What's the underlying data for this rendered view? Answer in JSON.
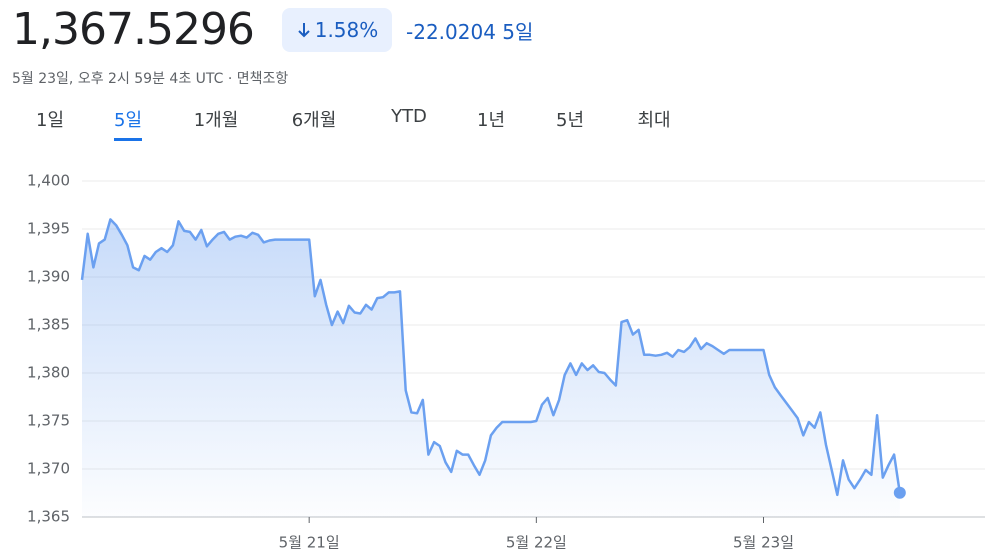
{
  "header": {
    "price": "1,367.5296",
    "change_percent": "1.58%",
    "change": "-22.0204",
    "period": "5일",
    "subtitle": "5월 23일, 오후 2시 59분 4초 UTC · 면책조항"
  },
  "tabs": {
    "items": [
      "1일",
      "5일",
      "1개월",
      "6개월",
      "YTD",
      "1년",
      "5년",
      "최대"
    ],
    "selected": 1
  },
  "chart_data": {
    "type": "line",
    "color": "#6ba0f0",
    "grid": true,
    "values": [
      1389.7,
      1394.5,
      1391.0,
      1393.5,
      1393.9,
      1396.0,
      1395.4,
      1394.4,
      1393.3,
      1391.0,
      1390.7,
      1392.2,
      1391.8,
      1392.6,
      1393.0,
      1392.6,
      1393.3,
      1395.8,
      1394.8,
      1394.7,
      1393.9,
      1394.9,
      1393.2,
      1393.9,
      1394.5,
      1394.7,
      1393.9,
      1394.2,
      1394.3,
      1394.1,
      1394.6,
      1394.4,
      1393.6,
      1393.8,
      1393.9,
      1393.9,
      1393.9,
      1393.9,
      1393.9,
      1393.9,
      1393.9,
      1388.0,
      1389.7,
      1387.1,
      1385.0,
      1386.4,
      1385.2,
      1387.0,
      1386.3,
      1386.2,
      1387.1,
      1386.6,
      1387.8,
      1387.9,
      1388.4,
      1388.4,
      1388.5,
      1378.2,
      1375.9,
      1375.8,
      1377.2,
      1371.5,
      1372.8,
      1372.4,
      1370.7,
      1369.7,
      1371.9,
      1371.5,
      1371.5,
      1370.4,
      1369.4,
      1370.9,
      1373.5,
      1374.3,
      1374.9,
      1374.9,
      1374.9,
      1374.9,
      1374.9,
      1374.9,
      1375.0,
      1376.7,
      1377.4,
      1375.6,
      1377.2,
      1379.8,
      1381.0,
      1379.8,
      1381.0,
      1380.3,
      1380.8,
      1380.1,
      1380.0,
      1379.3,
      1378.7,
      1385.3,
      1385.5,
      1384.0,
      1384.5,
      1381.9,
      1381.9,
      1381.8,
      1381.9,
      1382.1,
      1381.7,
      1382.4,
      1382.2,
      1382.7,
      1383.6,
      1382.5,
      1383.1,
      1382.8,
      1382.4,
      1382.0,
      1382.4,
      1382.4,
      1382.4,
      1382.4,
      1382.4,
      1382.4,
      1382.4,
      1379.8,
      1378.5,
      1377.7,
      1376.9,
      1376.1,
      1375.3,
      1373.5,
      1374.9,
      1374.3,
      1375.9,
      1372.5,
      1369.9,
      1367.3,
      1370.9,
      1368.9,
      1368.0,
      1368.9,
      1369.9,
      1369.4,
      1375.6,
      1369.1,
      1370.4,
      1371.5,
      1367.5296
    ],
    "xlim": [
      0,
      159
    ],
    "xticks": [
      {
        "value": 40,
        "label": "5월 21일"
      },
      {
        "value": 80,
        "label": "5월 22일"
      },
      {
        "value": 120,
        "label": "5월 23일"
      }
    ],
    "ylim": [
      1365,
      1400
    ],
    "yticks": [
      {
        "value": 1365,
        "label": "1,365"
      },
      {
        "value": 1370,
        "label": "1,370"
      },
      {
        "value": 1375,
        "label": "1,375"
      },
      {
        "value": 1380,
        "label": "1,380"
      },
      {
        "value": 1385,
        "label": "1,385"
      },
      {
        "value": 1390,
        "label": "1,390"
      },
      {
        "value": 1395,
        "label": "1,395"
      },
      {
        "value": 1400,
        "label": "1,400"
      }
    ]
  }
}
